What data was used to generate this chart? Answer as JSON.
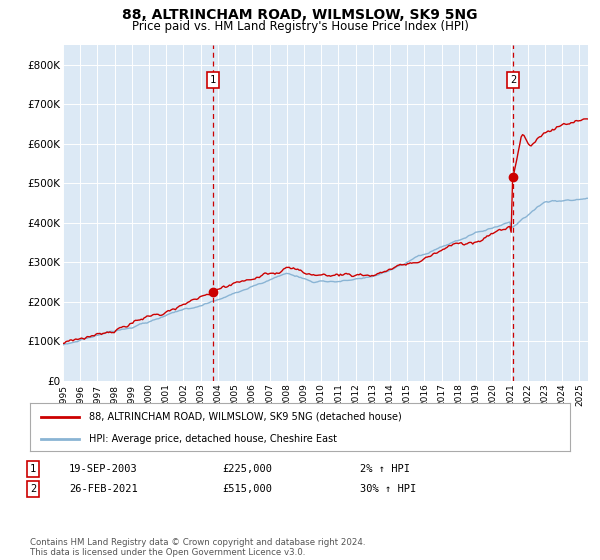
{
  "title": "88, ALTRINCHAM ROAD, WILMSLOW, SK9 5NG",
  "subtitle": "Price paid vs. HM Land Registry's House Price Index (HPI)",
  "title_fontsize": 10,
  "subtitle_fontsize": 8.5,
  "bg_color": "#dce9f5",
  "red_line_color": "#cc0000",
  "blue_line_color": "#8ab4d4",
  "grid_color": "#ffffff",
  "legend_label_red": "88, ALTRINCHAM ROAD, WILMSLOW, SK9 5NG (detached house)",
  "legend_label_blue": "HPI: Average price, detached house, Cheshire East",
  "sale1_date": "19-SEP-2003",
  "sale1_price": "£225,000",
  "sale1_hpi": "2% ↑ HPI",
  "sale1_x": 2003.72,
  "sale1_y": 225000,
  "sale2_date": "26-FEB-2021",
  "sale2_price": "£515,000",
  "sale2_hpi": "30% ↑ HPI",
  "sale2_x": 2021.15,
  "sale2_y": 515000,
  "yticks": [
    0,
    100000,
    200000,
    300000,
    400000,
    500000,
    600000,
    700000,
    800000
  ],
  "ytick_labels": [
    "£0",
    "£100K",
    "£200K",
    "£300K",
    "£400K",
    "£500K",
    "£600K",
    "£700K",
    "£800K"
  ],
  "xmin": 1995,
  "xmax": 2025.5,
  "ymin": 0,
  "ymax": 850000,
  "footnote": "Contains HM Land Registry data © Crown copyright and database right 2024.\nThis data is licensed under the Open Government Licence v3.0."
}
